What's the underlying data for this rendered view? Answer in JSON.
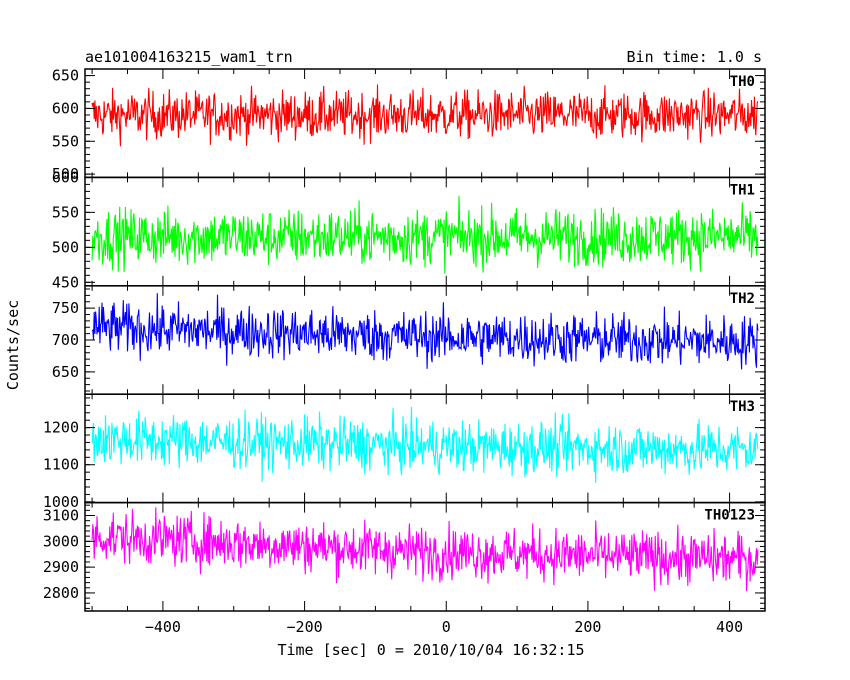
{
  "chart_data": {
    "type": "line",
    "title": "ae101004163215_wam1_trn",
    "subtitle": "Bin time: 1.0 s",
    "xlabel": "Time [sec] 0 = 2010/10/04 16:32:15",
    "ylabel": "Counts/sec",
    "xlim": [
      -510,
      450
    ],
    "x_range": [
      -500,
      440
    ],
    "x_ticks": [
      -400,
      -200,
      0,
      200,
      400
    ],
    "grid": false,
    "panels": [
      {
        "name": "TH0",
        "color": "#ff0000",
        "ylim": [
          495,
          660
        ],
        "y_ticks": [
          500,
          550,
          600,
          650
        ],
        "mean": 590,
        "trend": 0,
        "sigma": 18
      },
      {
        "name": "TH1",
        "color": "#00ff00",
        "ylim": [
          445,
          600
        ],
        "y_ticks": [
          450,
          500,
          550,
          600
        ],
        "mean": 515,
        "trend": 0,
        "sigma": 20
      },
      {
        "name": "TH2",
        "color": "#0000ff",
        "ylim": [
          615,
          785
        ],
        "y_ticks": [
          650,
          700,
          750
        ],
        "mean": 705,
        "trend": -15,
        "sigma": 20
      },
      {
        "name": "TH3",
        "color": "#00ffff",
        "ylim": [
          998,
          1290
        ],
        "y_ticks": [
          1000,
          1100,
          1200
        ],
        "mean": 1150,
        "trend": -20,
        "sigma": 35
      },
      {
        "name": "TH0123",
        "color": "#ff00ff",
        "ylim": [
          2730,
          3150
        ],
        "y_ticks": [
          2800,
          2900,
          3000,
          3100
        ],
        "mean": 2960,
        "trend": -60,
        "sigma": 50
      }
    ]
  }
}
